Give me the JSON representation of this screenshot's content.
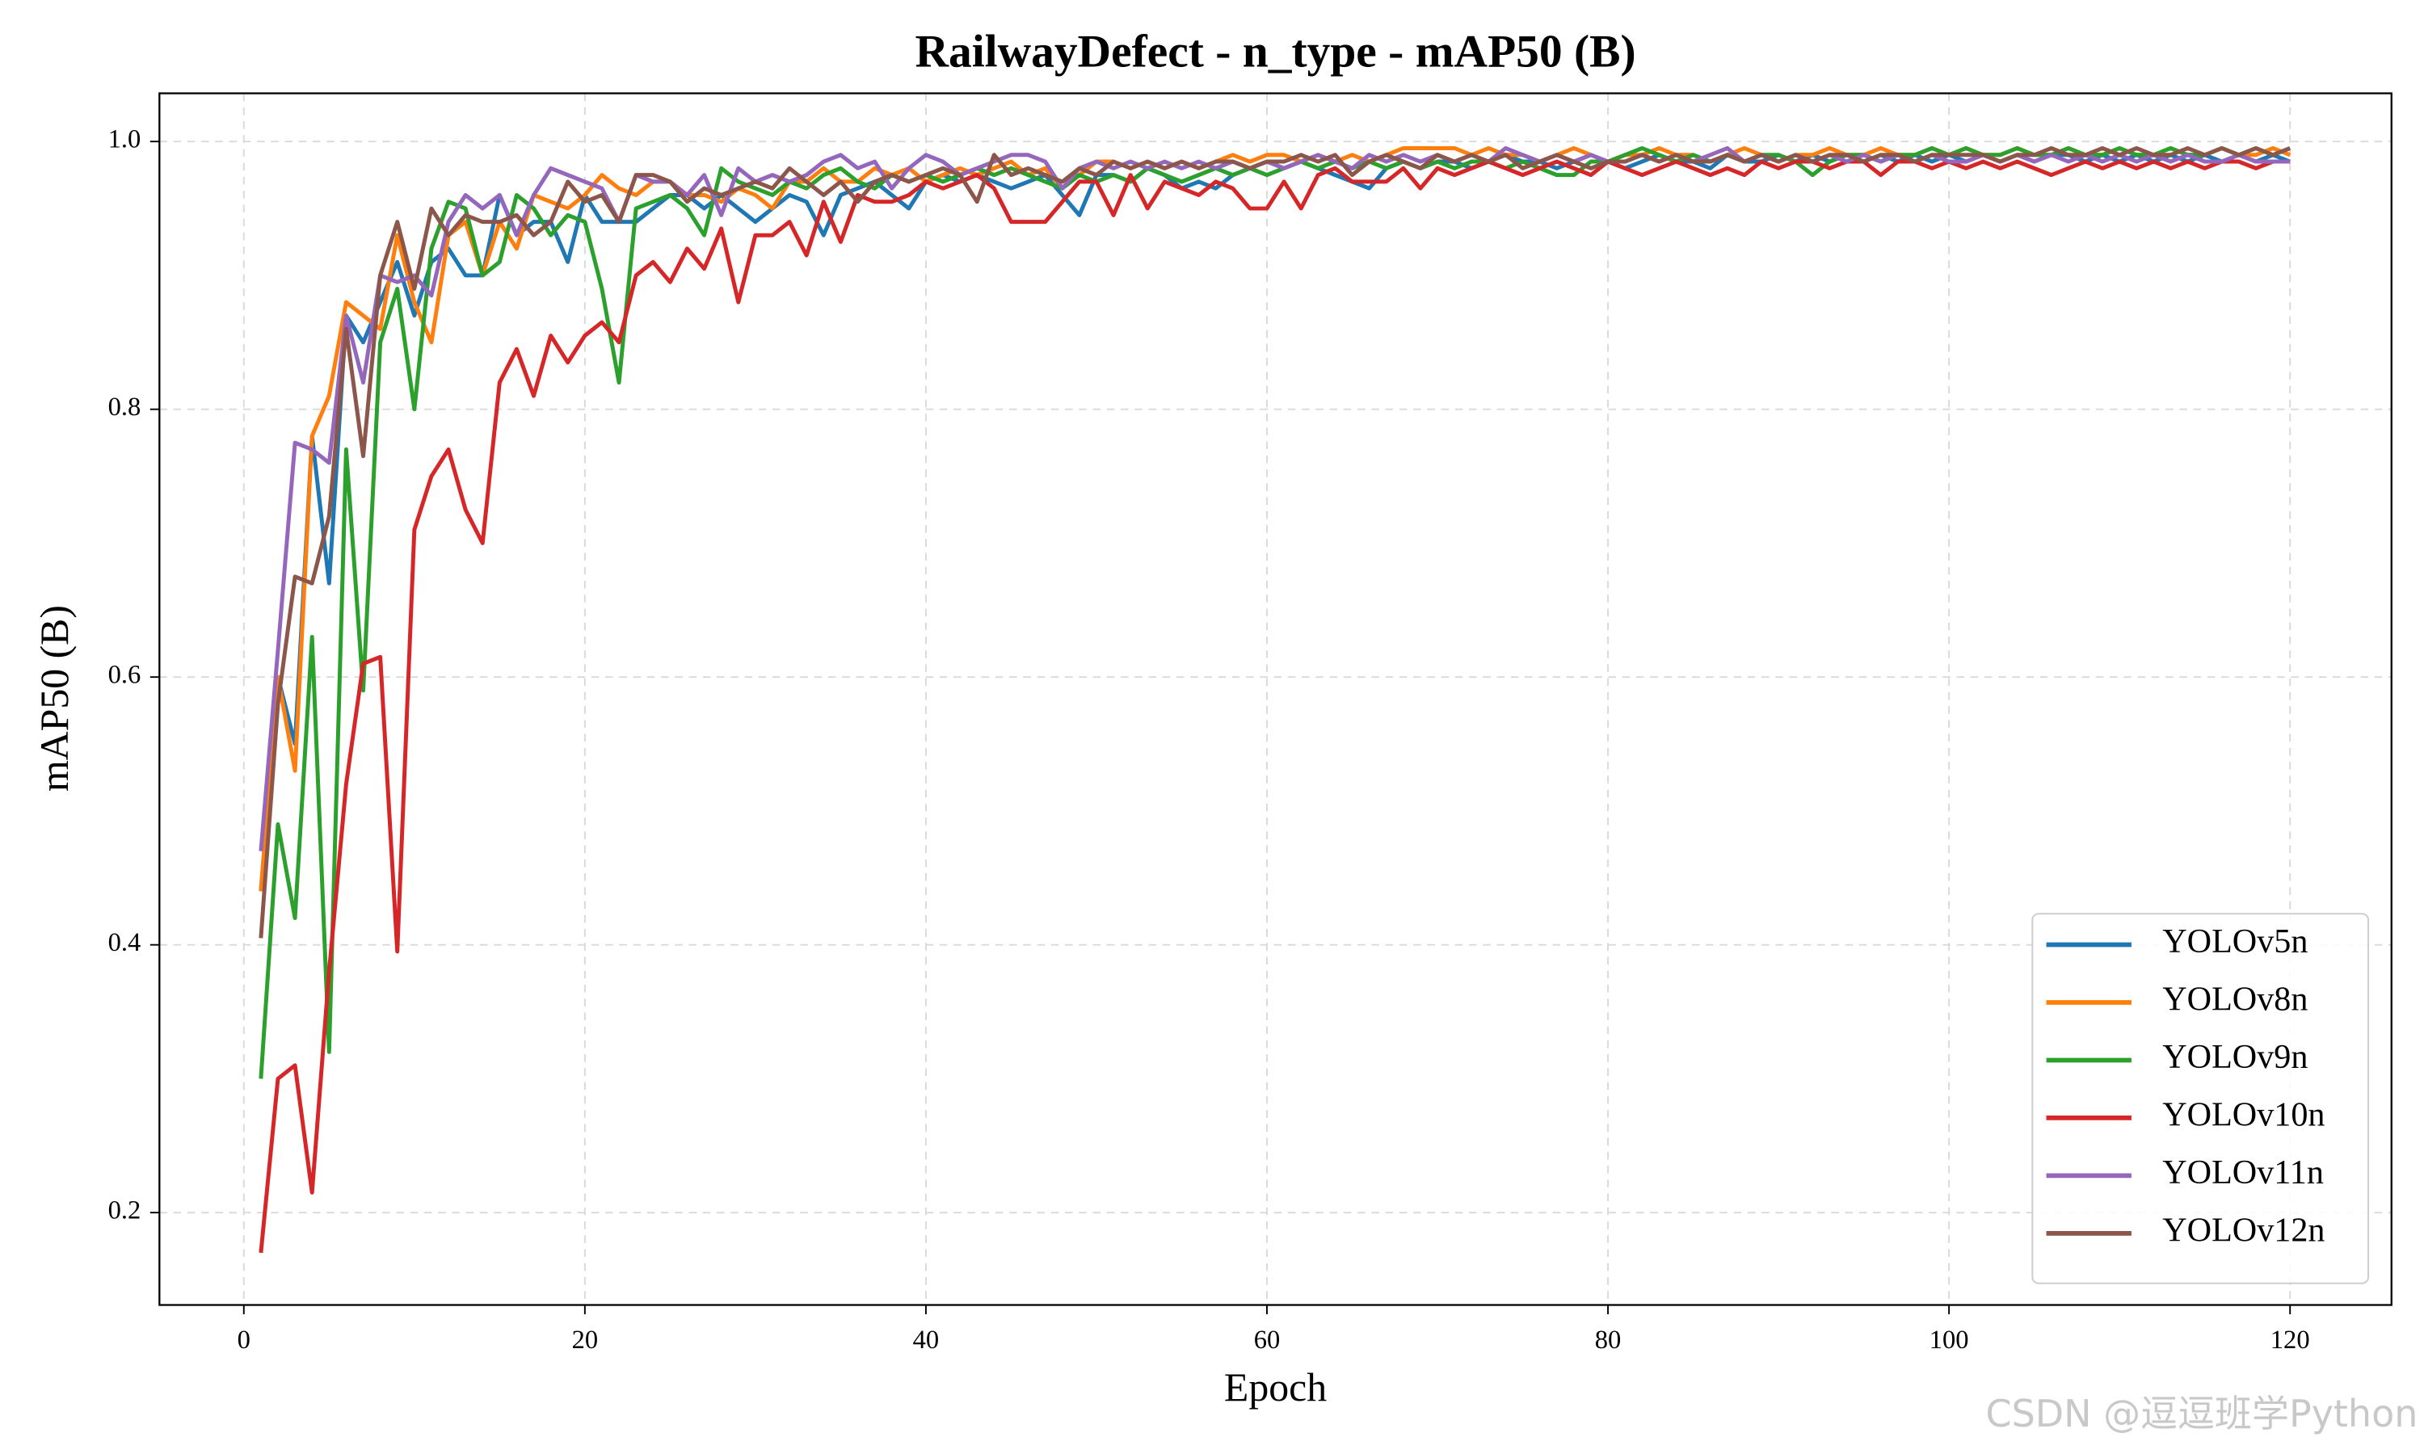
{
  "chart_data": {
    "type": "line",
    "title": "RailwayDefect - n_type - mAP50 (B)",
    "xlabel": "Epoch",
    "ylabel": "mAP50 (B)",
    "watermark": "CSDN @逗逗班学Python",
    "xlim": [
      -4.95,
      125.95
    ],
    "ylim": [
      0.131,
      1.036
    ],
    "xticks": [
      0,
      20,
      40,
      60,
      80,
      100,
      120
    ],
    "yticks": [
      0.2,
      0.4,
      0.6,
      0.8,
      {
        "value": 1,
        "label": "1.0"
      }
    ],
    "grid": true,
    "legend": "lower right",
    "x": [
      1,
      2,
      3,
      4,
      5,
      6,
      7,
      8,
      9,
      10,
      11,
      12,
      13,
      14,
      15,
      16,
      17,
      18,
      19,
      20,
      21,
      22,
      23,
      24,
      25,
      26,
      27,
      28,
      29,
      30,
      31,
      32,
      33,
      34,
      35,
      36,
      37,
      38,
      39,
      40,
      41,
      42,
      43,
      44,
      45,
      46,
      47,
      48,
      49,
      50,
      51,
      52,
      53,
      54,
      55,
      56,
      57,
      58,
      59,
      60,
      61,
      62,
      63,
      64,
      65,
      66,
      67,
      68,
      69,
      70,
      71,
      72,
      73,
      74,
      75,
      76,
      77,
      78,
      79,
      80,
      81,
      82,
      83,
      84,
      85,
      86,
      87,
      88,
      89,
      90,
      91,
      92,
      93,
      94,
      95,
      96,
      97,
      98,
      99,
      100,
      101,
      102,
      103,
      104,
      105,
      106,
      107,
      108,
      109,
      110,
      111,
      112,
      113,
      114,
      115,
      116,
      117,
      118,
      119,
      120
    ],
    "series": [
      {
        "name": "YOLOv5n",
        "color": "#1f77b4",
        "values": [
          0.44,
          0.6,
          0.55,
          0.78,
          0.67,
          0.87,
          0.85,
          0.88,
          0.91,
          0.87,
          0.91,
          0.92,
          0.9,
          0.9,
          0.96,
          0.93,
          0.94,
          0.94,
          0.91,
          0.96,
          0.94,
          0.94,
          0.94,
          0.95,
          0.96,
          0.96,
          0.95,
          0.96,
          0.95,
          0.94,
          0.95,
          0.96,
          0.955,
          0.93,
          0.96,
          0.965,
          0.97,
          0.96,
          0.95,
          0.97,
          0.975,
          0.97,
          0.975,
          0.97,
          0.965,
          0.97,
          0.975,
          0.96,
          0.945,
          0.975,
          0.975,
          0.97,
          0.98,
          0.975,
          0.965,
          0.97,
          0.965,
          0.975,
          0.98,
          0.985,
          0.98,
          0.985,
          0.98,
          0.975,
          0.97,
          0.965,
          0.98,
          0.985,
          0.98,
          0.985,
          0.985,
          0.98,
          0.985,
          0.99,
          0.985,
          0.985,
          0.98,
          0.985,
          0.99,
          0.985,
          0.98,
          0.985,
          0.99,
          0.985,
          0.985,
          0.98,
          0.99,
          0.985,
          0.985,
          0.99,
          0.985,
          0.99,
          0.985,
          0.99,
          0.985,
          0.99,
          0.985,
          0.99,
          0.985,
          0.99,
          0.985,
          0.99,
          0.985,
          0.99,
          0.985,
          0.99,
          0.99,
          0.985,
          0.99,
          0.985,
          0.99,
          0.985,
          0.99,
          0.985,
          0.99,
          0.985,
          0.99,
          0.985,
          0.99,
          0.985
        ]
      },
      {
        "name": "YOLOv8n",
        "color": "#ff7f0e",
        "values": [
          0.44,
          0.6,
          0.53,
          0.78,
          0.81,
          0.88,
          0.87,
          0.86,
          0.93,
          0.88,
          0.85,
          0.93,
          0.94,
          0.9,
          0.94,
          0.92,
          0.96,
          0.955,
          0.95,
          0.96,
          0.975,
          0.965,
          0.96,
          0.97,
          0.97,
          0.96,
          0.96,
          0.955,
          0.965,
          0.96,
          0.95,
          0.97,
          0.97,
          0.98,
          0.97,
          0.97,
          0.98,
          0.975,
          0.98,
          0.97,
          0.975,
          0.98,
          0.975,
          0.98,
          0.985,
          0.975,
          0.98,
          0.965,
          0.975,
          0.985,
          0.985,
          0.98,
          0.985,
          0.98,
          0.985,
          0.98,
          0.985,
          0.99,
          0.985,
          0.99,
          0.99,
          0.985,
          0.99,
          0.985,
          0.99,
          0.985,
          0.99,
          0.995,
          0.995,
          0.995,
          0.995,
          0.99,
          0.995,
          0.99,
          0.99,
          0.985,
          0.99,
          0.995,
          0.99,
          0.985,
          0.99,
          0.99,
          0.995,
          0.99,
          0.99,
          0.985,
          0.99,
          0.995,
          0.99,
          0.985,
          0.99,
          0.99,
          0.995,
          0.99,
          0.99,
          0.995,
          0.99,
          0.99,
          0.995,
          0.99,
          0.995,
          0.99,
          0.99,
          0.995,
          0.99,
          0.99,
          0.995,
          0.99,
          0.99,
          0.995,
          0.99,
          0.99,
          0.995,
          0.99,
          0.99,
          0.995,
          0.99,
          0.99,
          0.995,
          0.99
        ]
      },
      {
        "name": "YOLOv9n",
        "color": "#2ca02c",
        "values": [
          0.3,
          0.49,
          0.42,
          0.63,
          0.32,
          0.77,
          0.59,
          0.85,
          0.89,
          0.8,
          0.92,
          0.955,
          0.95,
          0.9,
          0.91,
          0.96,
          0.95,
          0.93,
          0.945,
          0.94,
          0.89,
          0.82,
          0.95,
          0.955,
          0.96,
          0.95,
          0.93,
          0.98,
          0.97,
          0.965,
          0.96,
          0.97,
          0.965,
          0.975,
          0.98,
          0.97,
          0.965,
          0.975,
          0.97,
          0.975,
          0.97,
          0.975,
          0.98,
          0.975,
          0.98,
          0.975,
          0.97,
          0.965,
          0.975,
          0.97,
          0.975,
          0.97,
          0.98,
          0.975,
          0.97,
          0.975,
          0.98,
          0.975,
          0.98,
          0.975,
          0.98,
          0.985,
          0.98,
          0.985,
          0.98,
          0.985,
          0.98,
          0.985,
          0.98,
          0.985,
          0.98,
          0.985,
          0.985,
          0.98,
          0.985,
          0.98,
          0.975,
          0.975,
          0.985,
          0.985,
          0.99,
          0.995,
          0.99,
          0.985,
          0.99,
          0.985,
          0.99,
          0.985,
          0.99,
          0.99,
          0.985,
          0.975,
          0.985,
          0.99,
          0.99,
          0.985,
          0.99,
          0.99,
          0.995,
          0.99,
          0.995,
          0.99,
          0.99,
          0.995,
          0.99,
          0.99,
          0.995,
          0.99,
          0.99,
          0.995,
          0.99,
          0.99,
          0.995,
          0.99,
          0.99,
          0.995,
          0.99,
          0.995,
          0.99,
          0.995
        ]
      },
      {
        "name": "YOLOv10n",
        "color": "#d62728",
        "values": [
          0.17,
          0.3,
          0.31,
          0.215,
          0.38,
          0.52,
          0.61,
          0.615,
          0.395,
          0.71,
          0.75,
          0.77,
          0.725,
          0.7,
          0.82,
          0.845,
          0.81,
          0.855,
          0.835,
          0.855,
          0.865,
          0.85,
          0.9,
          0.91,
          0.895,
          0.92,
          0.905,
          0.935,
          0.88,
          0.93,
          0.93,
          0.94,
          0.915,
          0.955,
          0.925,
          0.96,
          0.955,
          0.955,
          0.96,
          0.97,
          0.965,
          0.97,
          0.975,
          0.965,
          0.94,
          0.94,
          0.94,
          0.955,
          0.97,
          0.97,
          0.945,
          0.975,
          0.95,
          0.97,
          0.965,
          0.96,
          0.97,
          0.965,
          0.95,
          0.95,
          0.97,
          0.95,
          0.975,
          0.98,
          0.97,
          0.97,
          0.97,
          0.98,
          0.965,
          0.98,
          0.975,
          0.98,
          0.985,
          0.98,
          0.975,
          0.98,
          0.985,
          0.98,
          0.975,
          0.985,
          0.98,
          0.975,
          0.98,
          0.985,
          0.98,
          0.975,
          0.98,
          0.975,
          0.985,
          0.98,
          0.985,
          0.985,
          0.98,
          0.985,
          0.985,
          0.975,
          0.985,
          0.985,
          0.98,
          0.985,
          0.98,
          0.985,
          0.98,
          0.985,
          0.98,
          0.975,
          0.98,
          0.985,
          0.98,
          0.985,
          0.98,
          0.985,
          0.98,
          0.985,
          0.98,
          0.985,
          0.985,
          0.98,
          0.985,
          0.985
        ]
      },
      {
        "name": "YOLOv11n",
        "color": "#9467bd",
        "values": [
          0.47,
          0.62,
          0.775,
          0.77,
          0.76,
          0.87,
          0.82,
          0.9,
          0.895,
          0.9,
          0.885,
          0.94,
          0.96,
          0.95,
          0.96,
          0.93,
          0.96,
          0.98,
          0.975,
          0.97,
          0.965,
          0.94,
          0.975,
          0.97,
          0.97,
          0.96,
          0.975,
          0.945,
          0.98,
          0.97,
          0.975,
          0.97,
          0.975,
          0.985,
          0.99,
          0.98,
          0.985,
          0.965,
          0.98,
          0.99,
          0.985,
          0.975,
          0.98,
          0.985,
          0.99,
          0.99,
          0.985,
          0.965,
          0.98,
          0.985,
          0.98,
          0.985,
          0.98,
          0.985,
          0.98,
          0.985,
          0.98,
          0.985,
          0.98,
          0.985,
          0.98,
          0.985,
          0.99,
          0.985,
          0.98,
          0.99,
          0.985,
          0.99,
          0.985,
          0.99,
          0.985,
          0.99,
          0.985,
          0.995,
          0.99,
          0.985,
          0.99,
          0.985,
          0.99,
          0.985,
          0.985,
          0.99,
          0.985,
          0.99,
          0.985,
          0.99,
          0.995,
          0.985,
          0.99,
          0.985,
          0.99,
          0.985,
          0.99,
          0.985,
          0.99,
          0.985,
          0.99,
          0.985,
          0.99,
          0.985,
          0.985,
          0.99,
          0.985,
          0.99,
          0.985,
          0.99,
          0.985,
          0.99,
          0.985,
          0.99,
          0.985,
          0.99,
          0.985,
          0.99,
          0.985,
          0.985,
          0.99,
          0.985,
          0.985,
          0.985
        ]
      },
      {
        "name": "YOLOv12n",
        "color": "#8c564b",
        "values": [
          0.405,
          0.58,
          0.675,
          0.67,
          0.72,
          0.86,
          0.765,
          0.9,
          0.94,
          0.89,
          0.95,
          0.93,
          0.945,
          0.94,
          0.94,
          0.945,
          0.93,
          0.94,
          0.97,
          0.955,
          0.96,
          0.94,
          0.975,
          0.975,
          0.97,
          0.955,
          0.965,
          0.96,
          0.965,
          0.97,
          0.965,
          0.98,
          0.97,
          0.96,
          0.97,
          0.955,
          0.97,
          0.975,
          0.97,
          0.975,
          0.98,
          0.975,
          0.955,
          0.99,
          0.975,
          0.98,
          0.975,
          0.97,
          0.98,
          0.975,
          0.985,
          0.98,
          0.985,
          0.98,
          0.985,
          0.98,
          0.985,
          0.985,
          0.98,
          0.985,
          0.985,
          0.99,
          0.985,
          0.99,
          0.975,
          0.985,
          0.99,
          0.985,
          0.98,
          0.99,
          0.985,
          0.99,
          0.985,
          0.99,
          0.98,
          0.985,
          0.99,
          0.985,
          0.98,
          0.985,
          0.985,
          0.99,
          0.985,
          0.99,
          0.985,
          0.985,
          0.99,
          0.985,
          0.99,
          0.985,
          0.99,
          0.985,
          0.99,
          0.99,
          0.985,
          0.99,
          0.99,
          0.985,
          0.99,
          0.99,
          0.99,
          0.99,
          0.985,
          0.99,
          0.99,
          0.995,
          0.99,
          0.99,
          0.995,
          0.99,
          0.995,
          0.99,
          0.99,
          0.995,
          0.99,
          0.995,
          0.99,
          0.995,
          0.99,
          0.995
        ]
      }
    ]
  }
}
